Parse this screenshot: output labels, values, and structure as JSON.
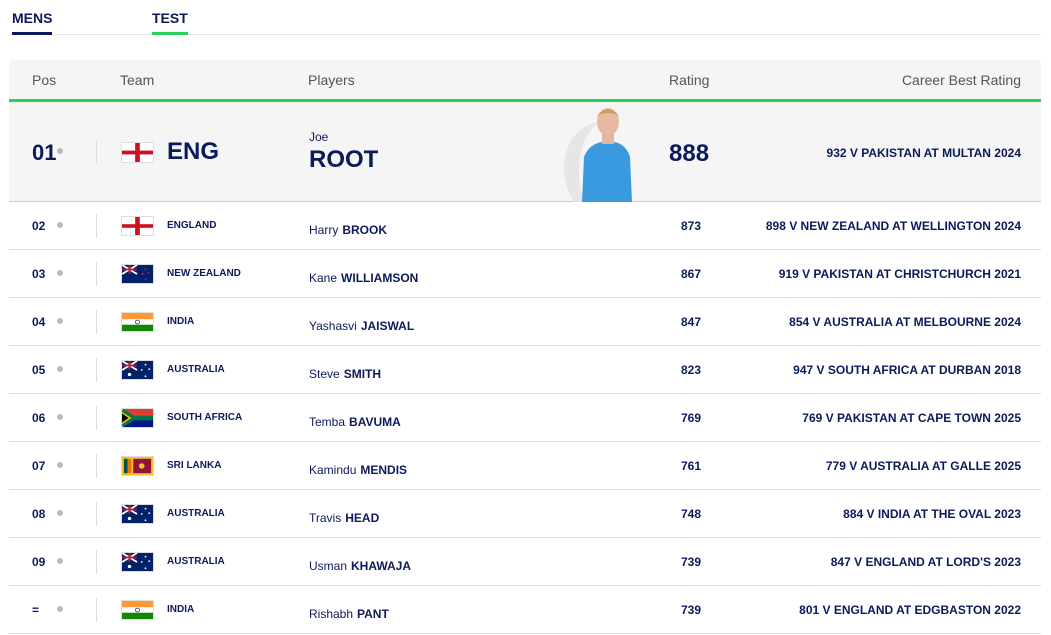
{
  "tabs": {
    "gender": "MENS",
    "format": "TEST"
  },
  "columns": {
    "pos": "Pos",
    "team": "Team",
    "players": "Players",
    "rating": "Rating",
    "best": "Career Best Rating"
  },
  "colors": {
    "accent": "#2bd05a",
    "navy": "#0b1a5a"
  },
  "leader": {
    "pos": "01",
    "team": "ENG",
    "flag": "england",
    "first": "Joe",
    "last": "ROOT",
    "rating": "888",
    "best": "932 V PAKISTAN AT MULTAN 2024"
  },
  "rows": [
    {
      "pos": "02",
      "team": "ENGLAND",
      "flag": "england",
      "first": "Harry",
      "last": "BROOK",
      "rating": "873",
      "best": "898 V NEW ZEALAND AT WELLINGTON 2024"
    },
    {
      "pos": "03",
      "team": "NEW ZEALAND",
      "flag": "new-zealand",
      "first": "Kane",
      "last": "WILLIAMSON",
      "rating": "867",
      "best": "919 V PAKISTAN AT CHRISTCHURCH 2021"
    },
    {
      "pos": "04",
      "team": "INDIA",
      "flag": "india",
      "first": "Yashasvi",
      "last": "JAISWAL",
      "rating": "847",
      "best": "854 V AUSTRALIA AT MELBOURNE 2024"
    },
    {
      "pos": "05",
      "team": "AUSTRALIA",
      "flag": "australia",
      "first": "Steve",
      "last": "SMITH",
      "rating": "823",
      "best": "947 V SOUTH AFRICA AT DURBAN 2018"
    },
    {
      "pos": "06",
      "team": "SOUTH AFRICA",
      "flag": "south-africa",
      "first": "Temba",
      "last": "BAVUMA",
      "rating": "769",
      "best": "769 V PAKISTAN AT CAPE TOWN 2025"
    },
    {
      "pos": "07",
      "team": "SRI LANKA",
      "flag": "sri-lanka",
      "first": "Kamindu",
      "last": "MENDIS",
      "rating": "761",
      "best": "779 V AUSTRALIA AT GALLE 2025"
    },
    {
      "pos": "08",
      "team": "AUSTRALIA",
      "flag": "australia",
      "first": "Travis",
      "last": "HEAD",
      "rating": "748",
      "best": "884 V INDIA AT THE OVAL 2023"
    },
    {
      "pos": "09",
      "team": "AUSTRALIA",
      "flag": "australia",
      "first": "Usman",
      "last": "KHAWAJA",
      "rating": "739",
      "best": "847 V ENGLAND AT LORD'S 2023"
    },
    {
      "pos": "=",
      "team": "INDIA",
      "flag": "india",
      "first": "Rishabh",
      "last": "PANT",
      "rating": "739",
      "best": "801 V ENGLAND AT EDGBASTON 2022"
    }
  ]
}
